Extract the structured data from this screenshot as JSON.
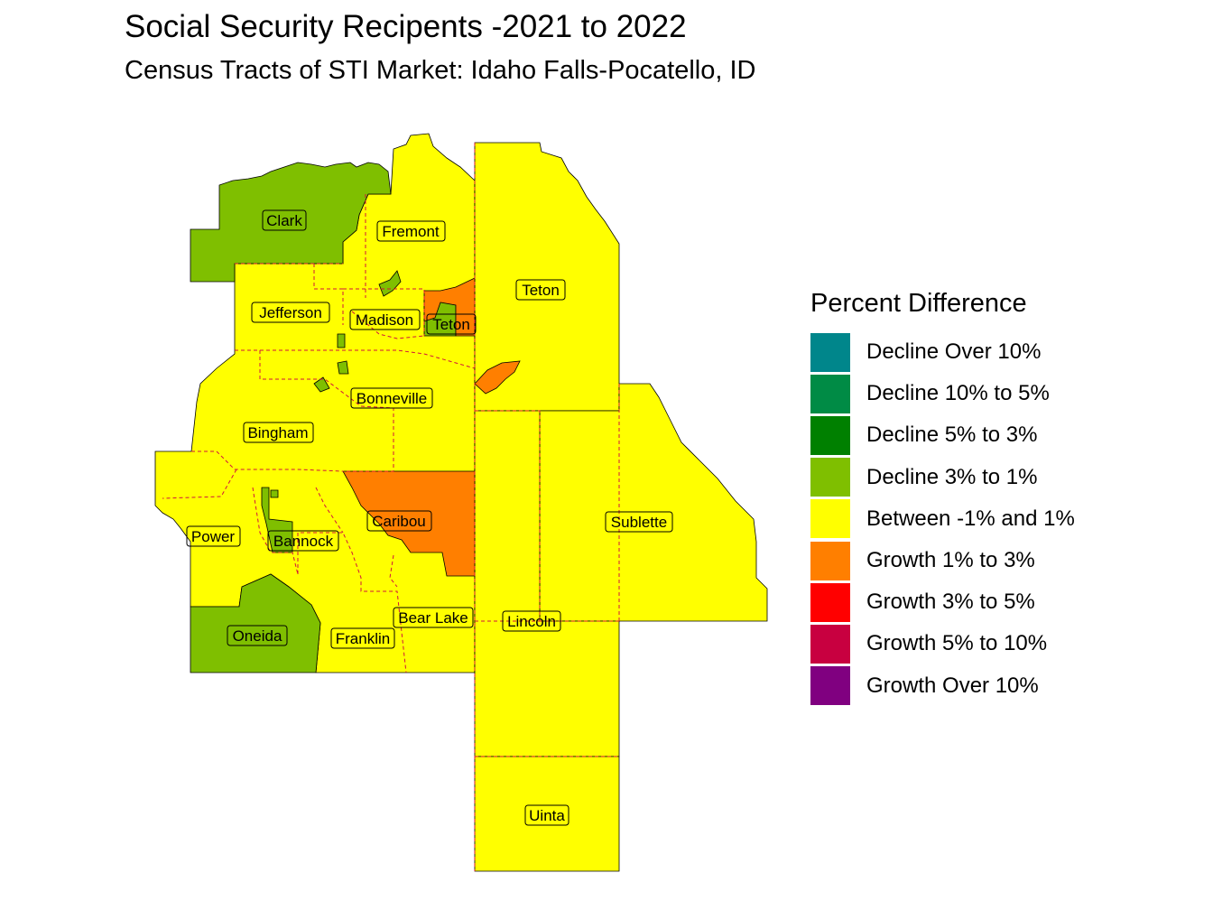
{
  "title": "Social Security Recipents -2021 to 2022",
  "subtitle": "Census Tracts of STI Market: Idaho Falls-Pocatello, ID",
  "legend": {
    "title": "Percent Difference",
    "items": [
      {
        "label": "Decline Over 10%",
        "color": "#00868B"
      },
      {
        "label": "Decline 10% to 5%",
        "color": "#008B45"
      },
      {
        "label": "Decline 5% to 3%",
        "color": "#008000"
      },
      {
        "label": "Decline 3% to 1%",
        "color": "#7FBF00"
      },
      {
        "label": "Between -1% and 1%",
        "color": "#FFFF00"
      },
      {
        "label": "Growth 1% to 3%",
        "color": "#FF7F00"
      },
      {
        "label": "Growth 3% to 5%",
        "color": "#FF0000"
      },
      {
        "label": "Growth 5% to 10%",
        "color": "#C80040"
      },
      {
        "label": "Growth Over 10%",
        "color": "#800080"
      }
    ]
  },
  "counties": [
    {
      "name": "Clark"
    },
    {
      "name": "Fremont"
    },
    {
      "name": "Teton"
    },
    {
      "name": "Jefferson"
    },
    {
      "name": "Madison"
    },
    {
      "name": "Teton"
    },
    {
      "name": "Bonneville"
    },
    {
      "name": "Bingham"
    },
    {
      "name": "Caribou"
    },
    {
      "name": "Sublette"
    },
    {
      "name": "Power"
    },
    {
      "name": "Bannock"
    },
    {
      "name": "Bear Lake"
    },
    {
      "name": "Lincoln"
    },
    {
      "name": "Oneida"
    },
    {
      "name": "Franklin"
    },
    {
      "name": "Uinta"
    }
  ]
}
